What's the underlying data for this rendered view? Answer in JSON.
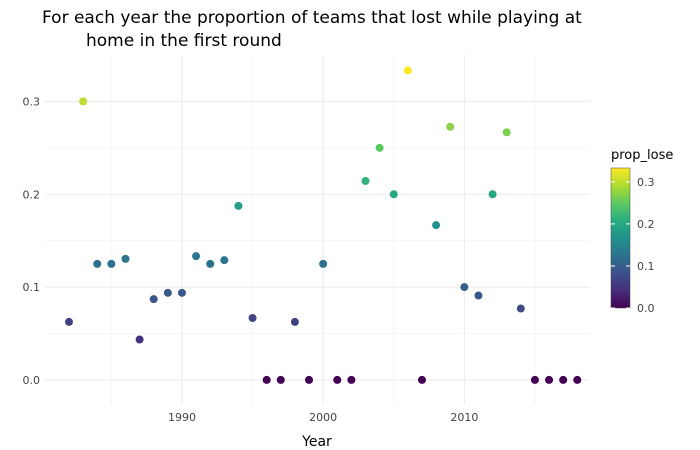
{
  "chart_data": {
    "type": "scatter",
    "title_line1": "For each year the proportion of teams that lost while playing at",
    "title_line2": "home in the first round",
    "xlabel": "Year",
    "ylabel": "",
    "xlim": [
      1980.3,
      2018.9
    ],
    "ylim": [
      -0.027,
      0.35
    ],
    "x_ticks": [
      1990,
      2000,
      2010
    ],
    "y_ticks": [
      0.0,
      0.1,
      0.2,
      0.3
    ],
    "x_tick_labels": [
      "1990",
      "2000",
      "2010"
    ],
    "y_tick_labels": [
      "0.0",
      "0.1",
      "0.2",
      "0.3"
    ],
    "grid": true,
    "legend": {
      "title": "prop_lose",
      "placement": "right",
      "colorscale": "viridis",
      "range": [
        0,
        0.333
      ],
      "ticks": [
        0.0,
        0.1,
        0.2,
        0.3
      ],
      "tick_labels": [
        "0.0",
        "0.1",
        "0.2",
        "0.3"
      ]
    },
    "points": [
      {
        "x": 1982,
        "y": 0.0625
      },
      {
        "x": 1983,
        "y": 0.3
      },
      {
        "x": 1984,
        "y": 0.125
      },
      {
        "x": 1985,
        "y": 0.125
      },
      {
        "x": 1986,
        "y": 0.1304
      },
      {
        "x": 1987,
        "y": 0.0435
      },
      {
        "x": 1988,
        "y": 0.087
      },
      {
        "x": 1989,
        "y": 0.0938
      },
      {
        "x": 1990,
        "y": 0.0938
      },
      {
        "x": 1991,
        "y": 0.1333
      },
      {
        "x": 1992,
        "y": 0.125
      },
      {
        "x": 1993,
        "y": 0.129
      },
      {
        "x": 1994,
        "y": 0.1875
      },
      {
        "x": 1995,
        "y": 0.0667
      },
      {
        "x": 1996,
        "y": 0.0
      },
      {
        "x": 1997,
        "y": 0.0
      },
      {
        "x": 1998,
        "y": 0.0625
      },
      {
        "x": 1999,
        "y": 0.0
      },
      {
        "x": 2000,
        "y": 0.125
      },
      {
        "x": 2001,
        "y": 0.0
      },
      {
        "x": 2002,
        "y": 0.0
      },
      {
        "x": 2003,
        "y": 0.2143
      },
      {
        "x": 2004,
        "y": 0.25
      },
      {
        "x": 2005,
        "y": 0.2
      },
      {
        "x": 2006,
        "y": 0.3333
      },
      {
        "x": 2007,
        "y": 0.0
      },
      {
        "x": 2008,
        "y": 0.1667
      },
      {
        "x": 2009,
        "y": 0.2727
      },
      {
        "x": 2010,
        "y": 0.1
      },
      {
        "x": 2011,
        "y": 0.0909
      },
      {
        "x": 2012,
        "y": 0.2
      },
      {
        "x": 2013,
        "y": 0.2667
      },
      {
        "x": 2014,
        "y": 0.0769
      },
      {
        "x": 2015,
        "y": 0.0
      },
      {
        "x": 2016,
        "y": 0.0
      },
      {
        "x": 2017,
        "y": 0.0
      },
      {
        "x": 2018,
        "y": 0.0
      }
    ]
  }
}
